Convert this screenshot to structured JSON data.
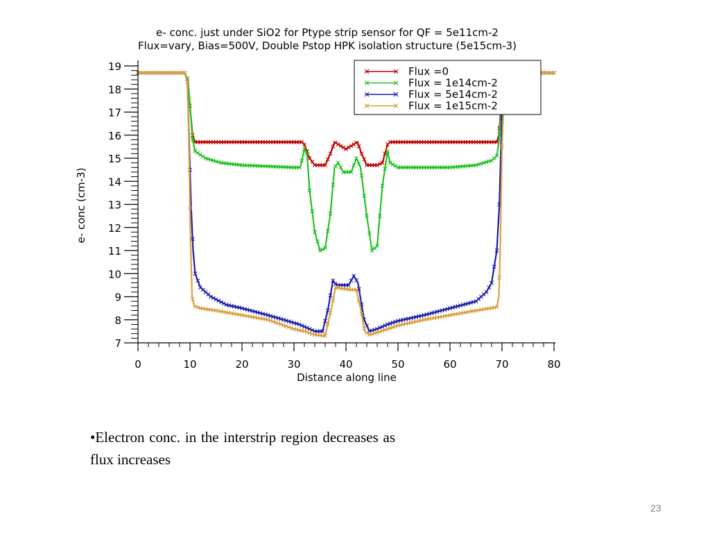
{
  "chart_data": {
    "type": "line",
    "title": "e- conc. just under SiO2 for Ptype strip sensor for QF = 5e11cm-2",
    "subtitle": "Flux=vary, Bias=500V, Double Pstop HPK isolation structure (5e15cm-3)",
    "xlabel": "Distance along line",
    "ylabel": "e- conc (cm-3)",
    "xlim": [
      0,
      80
    ],
    "ylim": [
      7,
      19
    ],
    "x_ticks": [
      0,
      10,
      20,
      30,
      40,
      50,
      60,
      70,
      80
    ],
    "y_ticks": [
      7,
      8,
      9,
      10,
      11,
      12,
      13,
      14,
      15,
      16,
      17,
      18,
      19
    ],
    "legend_position": "top-right",
    "series": [
      {
        "name": "Flux =0",
        "color": "#c00000",
        "x": [
          0,
          9,
          9.6,
          10.1,
          10.5,
          11,
          13,
          20,
          25,
          30,
          31.5,
          32,
          33,
          34,
          36,
          37,
          37.8,
          38.5,
          40,
          41.5,
          42.2,
          43,
          44,
          46,
          47,
          48,
          48.5,
          50,
          55,
          60,
          65,
          69,
          69.4,
          69.8,
          70.3,
          71,
          80
        ],
        "y": [
          18.7,
          18.7,
          18.4,
          17.0,
          16.0,
          15.7,
          15.7,
          15.7,
          15.7,
          15.7,
          15.7,
          15.6,
          15.0,
          14.7,
          14.7,
          15.2,
          15.7,
          15.6,
          15.4,
          15.6,
          15.7,
          15.2,
          14.7,
          14.7,
          14.8,
          15.6,
          15.7,
          15.7,
          15.7,
          15.7,
          15.7,
          15.7,
          16.0,
          17.2,
          18.4,
          18.7,
          18.7
        ]
      },
      {
        "name": "Flux = 1e14cm-2",
        "color": "#22c022",
        "x": [
          0,
          9,
          9.6,
          10.1,
          10.5,
          11,
          13,
          16,
          20,
          25,
          30,
          31.2,
          32,
          32.5,
          33,
          34,
          35,
          36,
          37,
          37.8,
          38.5,
          39.5,
          41,
          42,
          42.8,
          44,
          45,
          46,
          47,
          48,
          48.5,
          50,
          55,
          60,
          65,
          68,
          69,
          69.4,
          69.8,
          70.3,
          71,
          80
        ],
        "y": [
          18.7,
          18.7,
          18.4,
          17.0,
          15.8,
          15.3,
          15.0,
          14.8,
          14.7,
          14.65,
          14.6,
          14.6,
          15.4,
          15.2,
          13.6,
          11.8,
          11.0,
          11.1,
          12.6,
          14.6,
          14.8,
          14.4,
          14.4,
          15.0,
          14.6,
          12.5,
          11.0,
          11.2,
          13.8,
          15.3,
          14.8,
          14.6,
          14.6,
          14.6,
          14.7,
          14.9,
          15.1,
          15.7,
          17.0,
          18.4,
          18.7,
          18.7
        ]
      },
      {
        "name": "Flux = 5e14cm-2",
        "color": "#1c1ca8",
        "x": [
          0,
          9,
          9.5,
          9.8,
          10.2,
          10.6,
          11,
          12,
          14,
          17,
          20,
          25,
          28,
          31,
          32,
          34,
          35.5,
          36.5,
          37.5,
          38.2,
          40.5,
          41.5,
          42.3,
          43.5,
          44.5,
          46,
          48,
          50,
          55,
          60,
          65,
          67,
          68,
          69,
          69.5,
          69.8,
          70.2,
          71,
          80
        ],
        "y": [
          18.7,
          18.7,
          18.3,
          16.0,
          13.0,
          11.0,
          10.0,
          9.4,
          9.0,
          8.65,
          8.5,
          8.2,
          8.0,
          7.8,
          7.7,
          7.5,
          7.5,
          8.4,
          9.7,
          9.5,
          9.5,
          9.9,
          9.6,
          8.0,
          7.5,
          7.6,
          7.8,
          7.95,
          8.2,
          8.5,
          8.8,
          9.2,
          9.6,
          11.0,
          13.0,
          15.5,
          18.0,
          18.7,
          18.7
        ]
      },
      {
        "name": "Flux = 1e15cm-2",
        "color": "#d8a040",
        "x": [
          0,
          9,
          9.5,
          9.8,
          10.1,
          10.4,
          10.8,
          12,
          15,
          20,
          25,
          30,
          32,
          34,
          36,
          37.2,
          38,
          41,
          42,
          42.8,
          43.6,
          44.5,
          46,
          48,
          50,
          55,
          60,
          65,
          69,
          69.4,
          69.7,
          70,
          70.5,
          71,
          80
        ],
        "y": [
          18.7,
          18.7,
          18.3,
          15.5,
          11.5,
          9.0,
          8.6,
          8.5,
          8.4,
          8.2,
          8.0,
          7.6,
          7.5,
          7.35,
          7.3,
          8.5,
          9.4,
          9.3,
          9.3,
          8.5,
          7.5,
          7.35,
          7.45,
          7.6,
          7.75,
          8.0,
          8.2,
          8.4,
          8.55,
          9.0,
          11.5,
          15.5,
          18.4,
          18.7,
          18.7
        ]
      }
    ]
  },
  "bullet_text": "•Electron conc. in the interstrip region decreases as flux increases",
  "page_number": "23"
}
